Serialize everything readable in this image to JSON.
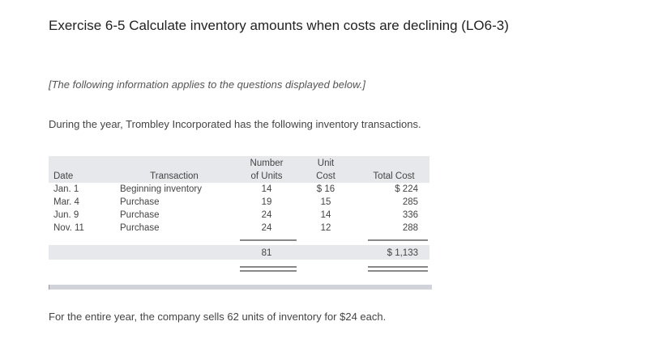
{
  "title": "Exercise 6-5 Calculate inventory amounts when costs are declining (LO6-3)",
  "note": "[The following information applies to the questions displayed below.]",
  "intro": "During the year, Trombley Incorporated has the following inventory transactions.",
  "table": {
    "headers": {
      "date": "Date",
      "transaction": "Transaction",
      "number_line1": "Number",
      "number_line2": "of Units",
      "unit_cost_line1": "Unit",
      "unit_cost_line2": "Cost",
      "total_cost": "Total Cost"
    },
    "rows": [
      {
        "date": "Jan. 1",
        "transaction": "Beginning inventory",
        "units": "14",
        "unit_cost": "$ 16",
        "total_cost": "$ 224"
      },
      {
        "date": "Mar. 4",
        "transaction": "Purchase",
        "units": "19",
        "unit_cost": "15",
        "total_cost": "285"
      },
      {
        "date": "Jun. 9",
        "transaction": "Purchase",
        "units": "24",
        "unit_cost": "14",
        "total_cost": "336"
      },
      {
        "date": "Nov. 11",
        "transaction": "Purchase",
        "units": "24",
        "unit_cost": "12",
        "total_cost": "288"
      }
    ],
    "totals": {
      "units": "81",
      "total_cost": "$ 1,133"
    }
  },
  "closing": "For the entire year, the company sells 62 units of inventory for $24 each."
}
